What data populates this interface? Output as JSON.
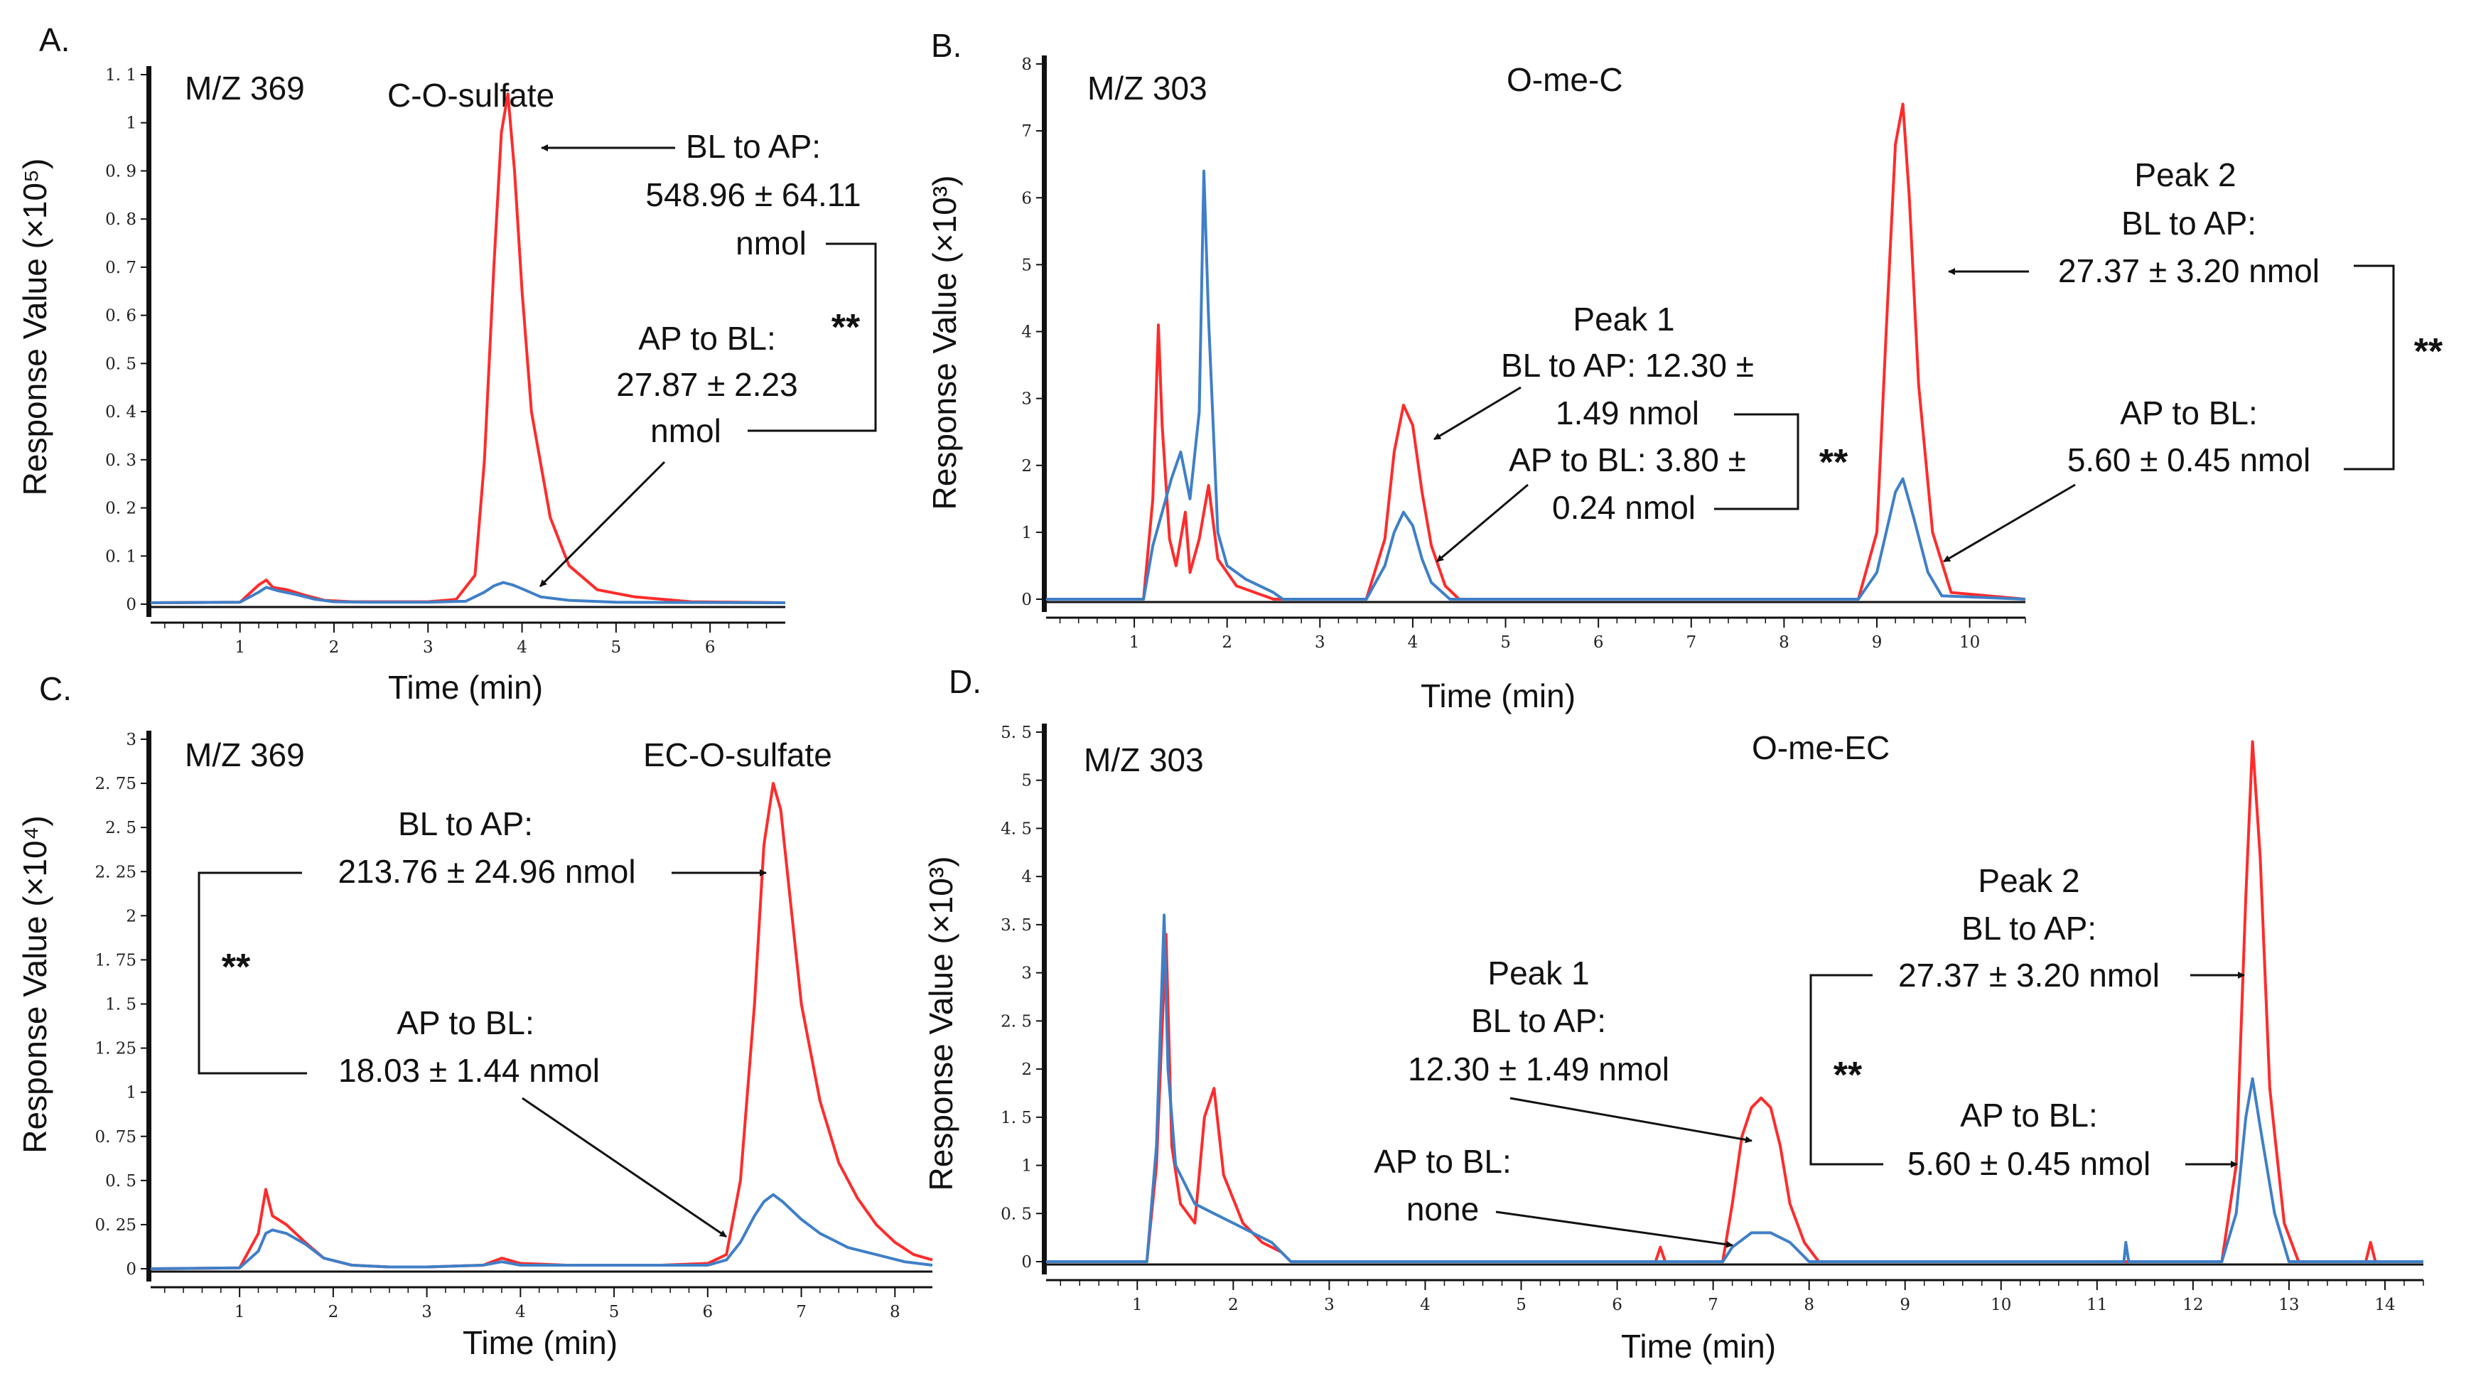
{
  "figure": {
    "series_colors": {
      "BL to AP": "#ff2b2b",
      "AP to BL": "#3f7fc8"
    }
  },
  "chart_data": [
    {
      "panel": "A.",
      "type": "line",
      "mz": "M/Z 369",
      "title": "C-O-sulfate",
      "xlabel": "Time (min)",
      "ylabel": "Response Value (×10⁵)",
      "xlim": [
        0.05,
        6.8
      ],
      "ylim": [
        0,
        1.1
      ],
      "xticks": [
        1,
        2,
        3,
        4,
        5,
        6
      ],
      "yticks": [
        0,
        0.1,
        0.2,
        0.3,
        0.4,
        0.5,
        0.6,
        0.7,
        0.8,
        0.9,
        1,
        1.1
      ],
      "ytick_labels": [
        "0",
        "0. 1",
        "0. 2",
        "0. 3",
        "0. 4",
        "0. 5",
        "0. 6",
        "0. 7",
        "0. 8",
        "0. 9",
        "1",
        "1. 1"
      ],
      "series": [
        {
          "name": "BL to AP",
          "color": "#ff2b2b",
          "x": [
            0.05,
            1.0,
            1.2,
            1.28,
            1.35,
            1.5,
            1.7,
            1.9,
            2.2,
            2.6,
            3.0,
            3.3,
            3.5,
            3.6,
            3.7,
            3.78,
            3.85,
            3.92,
            4.0,
            4.1,
            4.3,
            4.5,
            4.8,
            5.2,
            5.8,
            6.8
          ],
          "y": [
            0.003,
            0.004,
            0.04,
            0.05,
            0.035,
            0.03,
            0.018,
            0.008,
            0.005,
            0.005,
            0.005,
            0.01,
            0.06,
            0.3,
            0.7,
            0.98,
            1.06,
            0.9,
            0.65,
            0.4,
            0.18,
            0.08,
            0.03,
            0.015,
            0.005,
            0.003
          ]
        },
        {
          "name": "AP to BL",
          "color": "#3f7fc8",
          "x": [
            0.05,
            1.0,
            1.2,
            1.28,
            1.4,
            1.6,
            1.8,
            2.0,
            2.4,
            3.0,
            3.4,
            3.6,
            3.7,
            3.8,
            3.9,
            4.0,
            4.2,
            4.5,
            5.0,
            6.8
          ],
          "y": [
            0.003,
            0.004,
            0.025,
            0.035,
            0.028,
            0.02,
            0.01,
            0.005,
            0.004,
            0.004,
            0.006,
            0.025,
            0.038,
            0.045,
            0.04,
            0.032,
            0.015,
            0.008,
            0.004,
            0.003
          ]
        }
      ],
      "annotations": [
        {
          "series": "BL to AP",
          "lines": [
            "BL to AP:",
            "548.96 ± 64.11",
            "nmol"
          ]
        },
        {
          "series": "AP to BL",
          "lines": [
            "AP to BL:",
            "27.87 ± 2.23",
            "nmol"
          ]
        },
        {
          "significance": "**"
        }
      ]
    },
    {
      "panel": "B.",
      "type": "line",
      "mz": "M/Z 303",
      "title": "O-me-C",
      "xlabel": "Time (min)",
      "ylabel": "Response Value (×10³)",
      "xlim": [
        0.05,
        10.6
      ],
      "ylim": [
        0,
        8
      ],
      "xticks": [
        1,
        2,
        3,
        4,
        5,
        6,
        7,
        8,
        9,
        10
      ],
      "yticks": [
        0,
        1,
        2,
        3,
        4,
        5,
        6,
        7,
        8
      ],
      "ytick_labels": [
        "0",
        "1",
        "2",
        "3",
        "4",
        "5",
        "6",
        "7",
        "8"
      ],
      "series": [
        {
          "name": "BL to AP",
          "color": "#ff2b2b",
          "x": [
            0.05,
            1.1,
            1.2,
            1.26,
            1.3,
            1.38,
            1.45,
            1.55,
            1.6,
            1.7,
            1.8,
            1.9,
            2.1,
            2.4,
            2.5,
            3.5,
            3.7,
            3.8,
            3.9,
            4.0,
            4.1,
            4.2,
            4.35,
            4.5,
            8.8,
            9.0,
            9.1,
            9.2,
            9.28,
            9.35,
            9.45,
            9.6,
            9.8,
            10.6
          ],
          "y": [
            0,
            0,
            1.5,
            4.1,
            2.6,
            0.9,
            0.5,
            1.3,
            0.4,
            0.9,
            1.7,
            0.6,
            0.2,
            0.05,
            0,
            0,
            0.9,
            2.2,
            2.9,
            2.6,
            1.6,
            0.8,
            0.2,
            0,
            0,
            1.0,
            4.0,
            6.8,
            7.4,
            6.0,
            3.2,
            1.0,
            0.1,
            0
          ]
        },
        {
          "name": "AP to BL",
          "color": "#3f7fc8",
          "x": [
            0.05,
            1.1,
            1.2,
            1.3,
            1.4,
            1.5,
            1.6,
            1.7,
            1.75,
            1.8,
            1.9,
            2.0,
            2.2,
            2.5,
            2.6,
            3.5,
            3.7,
            3.8,
            3.9,
            4.0,
            4.1,
            4.2,
            4.4,
            8.8,
            9.0,
            9.1,
            9.2,
            9.28,
            9.4,
            9.55,
            9.7,
            10.6
          ],
          "y": [
            0,
            0,
            0.8,
            1.3,
            1.8,
            2.2,
            1.5,
            2.8,
            6.4,
            4.2,
            1.0,
            0.5,
            0.3,
            0.1,
            0,
            0,
            0.5,
            1.0,
            1.3,
            1.1,
            0.6,
            0.25,
            0,
            0,
            0.4,
            1.0,
            1.6,
            1.8,
            1.2,
            0.4,
            0.05,
            0
          ]
        }
      ],
      "annotations": [
        {
          "label": "Peak 1",
          "series": "BL to AP",
          "lines": [
            "BL to AP: 12.30 ±",
            "1.49 nmol"
          ]
        },
        {
          "label": "Peak 1",
          "series": "AP to BL",
          "lines": [
            "AP to BL: 3.80 ±",
            "0.24 nmol"
          ]
        },
        {
          "label": "Peak 2",
          "series": "BL to AP",
          "lines": [
            "BL to AP:",
            "27.37 ± 3.20 nmol"
          ]
        },
        {
          "label": "Peak 2",
          "series": "AP to BL",
          "lines": [
            "AP to BL:",
            "5.60 ± 0.45 nmol"
          ]
        },
        {
          "significance": "**"
        }
      ]
    },
    {
      "panel": "C.",
      "type": "line",
      "mz": "M/Z 369",
      "title": "EC-O-sulfate",
      "xlabel": "Time (min)",
      "ylabel": "Response Value (×10⁴)",
      "xlim": [
        0.05,
        8.4
      ],
      "ylim": [
        0,
        3
      ],
      "xticks": [
        1,
        2,
        3,
        4,
        5,
        6,
        7,
        8
      ],
      "yticks": [
        0,
        0.25,
        0.5,
        0.75,
        1,
        1.25,
        1.5,
        1.75,
        2,
        2.25,
        2.5,
        2.75,
        3
      ],
      "ytick_labels": [
        "0",
        "0. 25",
        "0. 5",
        "0. 75",
        "1",
        "1. 25",
        "1. 5",
        "1. 75",
        "2",
        "2. 25",
        "2. 5",
        "2. 75",
        "3"
      ],
      "series": [
        {
          "name": "BL to AP",
          "color": "#ff2b2b",
          "x": [
            0.05,
            1.0,
            1.2,
            1.28,
            1.35,
            1.5,
            1.7,
            1.9,
            2.2,
            2.6,
            3.0,
            3.6,
            3.8,
            4.0,
            4.5,
            5.0,
            5.5,
            6.0,
            6.2,
            6.35,
            6.5,
            6.6,
            6.7,
            6.78,
            6.9,
            7.0,
            7.2,
            7.4,
            7.6,
            7.8,
            8.0,
            8.2,
            8.4
          ],
          "y": [
            0,
            0.005,
            0.2,
            0.45,
            0.3,
            0.25,
            0.15,
            0.06,
            0.02,
            0.01,
            0.01,
            0.02,
            0.06,
            0.03,
            0.02,
            0.02,
            0.02,
            0.03,
            0.08,
            0.5,
            1.5,
            2.4,
            2.75,
            2.6,
            2.0,
            1.5,
            0.95,
            0.6,
            0.4,
            0.25,
            0.15,
            0.08,
            0.05
          ]
        },
        {
          "name": "AP to BL",
          "color": "#3f7fc8",
          "x": [
            0.05,
            1.0,
            1.2,
            1.28,
            1.35,
            1.5,
            1.7,
            1.9,
            2.2,
            2.6,
            3.0,
            3.6,
            3.8,
            4.0,
            5.0,
            6.0,
            6.2,
            6.35,
            6.5,
            6.6,
            6.7,
            6.8,
            7.0,
            7.2,
            7.5,
            7.8,
            8.1,
            8.4
          ],
          "y": [
            0,
            0.005,
            0.1,
            0.2,
            0.22,
            0.2,
            0.14,
            0.06,
            0.02,
            0.01,
            0.01,
            0.02,
            0.04,
            0.02,
            0.02,
            0.02,
            0.05,
            0.15,
            0.3,
            0.38,
            0.42,
            0.38,
            0.28,
            0.2,
            0.12,
            0.08,
            0.04,
            0.02
          ]
        }
      ],
      "annotations": [
        {
          "series": "BL to AP",
          "lines": [
            "BL to AP:",
            "213.76 ± 24.96 nmol"
          ]
        },
        {
          "series": "AP to BL",
          "lines": [
            "AP to BL:",
            "18.03 ± 1.44 nmol"
          ]
        },
        {
          "significance": "**"
        }
      ]
    },
    {
      "panel": "D.",
      "type": "line",
      "mz": "M/Z 303",
      "title": "O-me-EC",
      "xlabel": "Time (min)",
      "ylabel": "Response Value (×10³)",
      "xlim": [
        0.05,
        14.4
      ],
      "ylim": [
        0,
        5.5
      ],
      "xticks": [
        1,
        2,
        3,
        4,
        5,
        6,
        7,
        8,
        9,
        10,
        11,
        12,
        13,
        14
      ],
      "yticks": [
        0,
        0.5,
        1,
        1.5,
        2,
        2.5,
        3,
        3.5,
        4,
        4.5,
        5,
        5.5
      ],
      "ytick_labels": [
        "0",
        "0. 5",
        "1",
        "1. 5",
        "2",
        "2. 5",
        "3",
        "3. 5",
        "4",
        "4. 5",
        "5",
        "5. 5"
      ],
      "series": [
        {
          "name": "BL to AP",
          "color": "#ff2b2b",
          "x": [
            0.05,
            1.1,
            1.2,
            1.3,
            1.36,
            1.45,
            1.6,
            1.7,
            1.8,
            1.9,
            2.1,
            2.3,
            2.5,
            2.6,
            6.4,
            6.45,
            6.5,
            7.1,
            7.2,
            7.3,
            7.4,
            7.5,
            7.6,
            7.7,
            7.8,
            7.95,
            8.1,
            12.3,
            12.45,
            12.55,
            12.62,
            12.7,
            12.8,
            12.95,
            13.1,
            13.8,
            13.85,
            13.9,
            14.4
          ],
          "y": [
            0,
            0,
            1.0,
            3.4,
            1.2,
            0.6,
            0.4,
            1.5,
            1.8,
            0.9,
            0.4,
            0.2,
            0.1,
            0,
            0,
            0.15,
            0,
            0,
            0.6,
            1.3,
            1.6,
            1.7,
            1.6,
            1.2,
            0.6,
            0.2,
            0,
            0,
            1.0,
            3.8,
            5.4,
            4.2,
            1.8,
            0.4,
            0,
            0,
            0.2,
            0,
            0
          ]
        },
        {
          "name": "AP to BL",
          "color": "#3f7fc8",
          "x": [
            0.05,
            1.1,
            1.2,
            1.28,
            1.32,
            1.4,
            1.6,
            1.8,
            2.0,
            2.2,
            2.4,
            2.6,
            7.1,
            7.2,
            7.4,
            7.6,
            7.8,
            8.0,
            11.28,
            11.3,
            11.33,
            12.3,
            12.45,
            12.55,
            12.62,
            12.7,
            12.85,
            13.0,
            14.4
          ],
          "y": [
            0,
            0,
            1.2,
            3.6,
            2.0,
            1.0,
            0.6,
            0.5,
            0.4,
            0.3,
            0.2,
            0,
            0,
            0.15,
            0.3,
            0.3,
            0.2,
            0,
            0,
            0.2,
            0,
            0,
            0.5,
            1.5,
            1.9,
            1.4,
            0.5,
            0,
            0
          ]
        }
      ],
      "annotations": [
        {
          "label": "Peak 1",
          "series": "BL to AP",
          "lines": [
            "BL to AP:",
            "12.30 ± 1.49 nmol"
          ]
        },
        {
          "label": "Peak 1",
          "series": "AP to BL",
          "lines": [
            "AP to BL:",
            "none"
          ]
        },
        {
          "label": "Peak 2",
          "series": "BL to AP",
          "lines": [
            "BL to AP:",
            "27.37 ± 3.20 nmol"
          ]
        },
        {
          "label": "Peak 2",
          "series": "AP to BL",
          "lines": [
            "AP to BL:",
            "5.60 ± 0.45 nmol"
          ]
        },
        {
          "significance": "**"
        }
      ]
    }
  ]
}
